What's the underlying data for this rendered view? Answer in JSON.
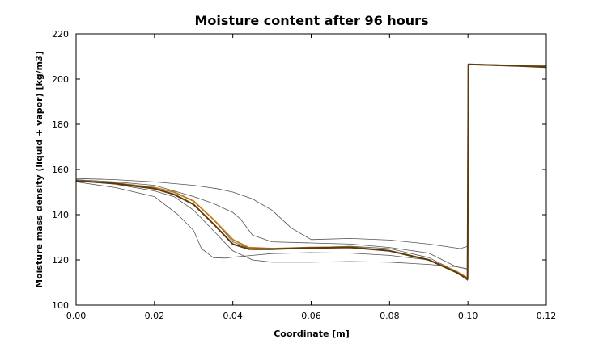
{
  "chart_data": {
    "type": "line",
    "title": "Moisture content after 96 hours",
    "xlabel": "Coordinate [m]",
    "ylabel": "Moisture mass density (liquid + vapor) [kg/m3]",
    "xlim": [
      0,
      0.12
    ],
    "ylim": [
      100,
      220
    ],
    "xticks": [
      "0.00",
      "0.02",
      "0.04",
      "0.06",
      "0.08",
      "0.10",
      "0.12"
    ],
    "yticks": [
      "100",
      "120",
      "140",
      "160",
      "180",
      "200",
      "220"
    ],
    "grid": false,
    "legend": "none",
    "series": [
      {
        "color": "#555555",
        "width": 0.8,
        "x": [
          0,
          0.01,
          0.02,
          0.03,
          0.036,
          0.04,
          0.045,
          0.05,
          0.055,
          0.06,
          0.07,
          0.08,
          0.09,
          0.098,
          0.0999,
          0.1001,
          0.11,
          0.12
        ],
        "y": [
          156,
          155.5,
          154.5,
          153,
          151.5,
          150,
          147,
          142,
          134,
          129,
          129.5,
          128.8,
          127,
          125,
          126,
          206.5,
          206.3,
          206
        ]
      },
      {
        "color": "#555555",
        "width": 0.8,
        "x": [
          0,
          0.01,
          0.02,
          0.03,
          0.035,
          0.04,
          0.042,
          0.045,
          0.05,
          0.06,
          0.07,
          0.08,
          0.09,
          0.097,
          0.0999,
          0.1001,
          0.11,
          0.12
        ],
        "y": [
          155.5,
          154.5,
          153,
          148,
          145,
          141,
          138,
          131,
          128,
          127.5,
          127,
          125.5,
          123,
          117,
          116,
          206.3,
          206.1,
          205.8
        ]
      },
      {
        "color": "#555555",
        "width": 0.8,
        "x": [
          0,
          0.01,
          0.02,
          0.025,
          0.03,
          0.035,
          0.04,
          0.045,
          0.05,
          0.06,
          0.07,
          0.08,
          0.09,
          0.097,
          0.0999,
          0.1001,
          0.11,
          0.12
        ],
        "y": [
          155,
          154,
          152,
          150,
          146,
          138,
          128,
          124.5,
          124.5,
          125.5,
          126,
          125,
          121,
          115,
          111,
          206.6,
          206.2,
          205.5
        ]
      },
      {
        "color": "#555555",
        "width": 0.8,
        "x": [
          0,
          0.01,
          0.02,
          0.026,
          0.03,
          0.032,
          0.035,
          0.038,
          0.04,
          0.045,
          0.05,
          0.06,
          0.07,
          0.08,
          0.09,
          0.097,
          0.0999,
          0.1001,
          0.11,
          0.12
        ],
        "y": [
          154.5,
          152,
          148,
          140,
          133,
          125,
          121,
          120.8,
          121.2,
          122,
          122.8,
          123.2,
          123,
          122,
          120,
          115,
          111,
          206.4,
          206,
          205.6
        ]
      },
      {
        "color": "#555555",
        "width": 0.8,
        "x": [
          0,
          0.01,
          0.02,
          0.025,
          0.03,
          0.035,
          0.04,
          0.045,
          0.05,
          0.06,
          0.07,
          0.08,
          0.09,
          0.097,
          0.0999,
          0.1001,
          0.11,
          0.12
        ],
        "y": [
          155,
          153.5,
          150.5,
          148,
          142,
          133,
          124,
          120,
          119,
          119,
          119.3,
          119,
          118,
          117,
          116,
          206.5,
          206.2,
          206
        ]
      },
      {
        "color": "#c07a10",
        "width": 1.8,
        "x": [
          0,
          0.01,
          0.02,
          0.025,
          0.03,
          0.035,
          0.04,
          0.044,
          0.05,
          0.06,
          0.07,
          0.08,
          0.09,
          0.097,
          0.0999,
          0.1001,
          0.11,
          0.12
        ],
        "y": [
          155,
          154,
          152,
          150,
          146,
          138,
          129,
          125.5,
          125,
          125.5,
          125.7,
          124,
          120,
          115,
          112,
          206.5,
          206,
          205.5
        ]
      },
      {
        "color": "#5a3a10",
        "width": 2.0,
        "x": [
          0,
          0.01,
          0.02,
          0.025,
          0.03,
          0.035,
          0.04,
          0.044,
          0.05,
          0.06,
          0.07,
          0.08,
          0.09,
          0.097,
          0.0999,
          0.1001,
          0.11,
          0.12
        ],
        "y": [
          155,
          153.8,
          151.5,
          149,
          144.5,
          136,
          127,
          124.8,
          124.8,
          125.3,
          125.5,
          124,
          120,
          114.5,
          111.5,
          206.5,
          206,
          205.3
        ]
      }
    ]
  }
}
